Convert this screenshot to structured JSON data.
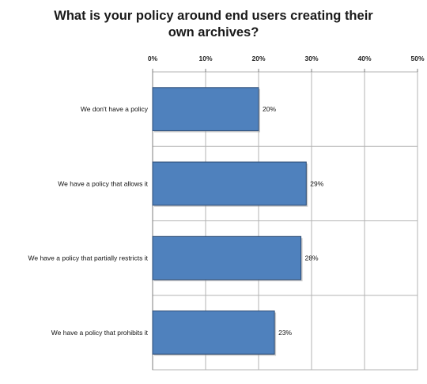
{
  "chart_data": {
    "type": "bar",
    "orientation": "horizontal",
    "title_lines": [
      "What is your policy around end users creating their",
      "own archives?"
    ],
    "categories": [
      "We don't have a policy",
      "We have a policy that allows it",
      "We have a policy that partially restricts it",
      "We have a policy that prohibits it"
    ],
    "values": [
      20,
      29,
      28,
      23
    ],
    "data_labels": [
      "20%",
      "29%",
      "28%",
      "23%"
    ],
    "xlim": [
      0,
      50
    ],
    "xticks": [
      0,
      10,
      20,
      30,
      40,
      50
    ],
    "xtick_labels": [
      "0%",
      "10%",
      "20%",
      "30%",
      "40%",
      "50%"
    ],
    "xaxis_position": "top",
    "grid": true,
    "legend": "none",
    "colors": {
      "bar_fill": "#4f81bd",
      "bar_stroke": "#2b4a73",
      "grid": "#b3b3b3",
      "axis": "#7f7f7f"
    }
  }
}
